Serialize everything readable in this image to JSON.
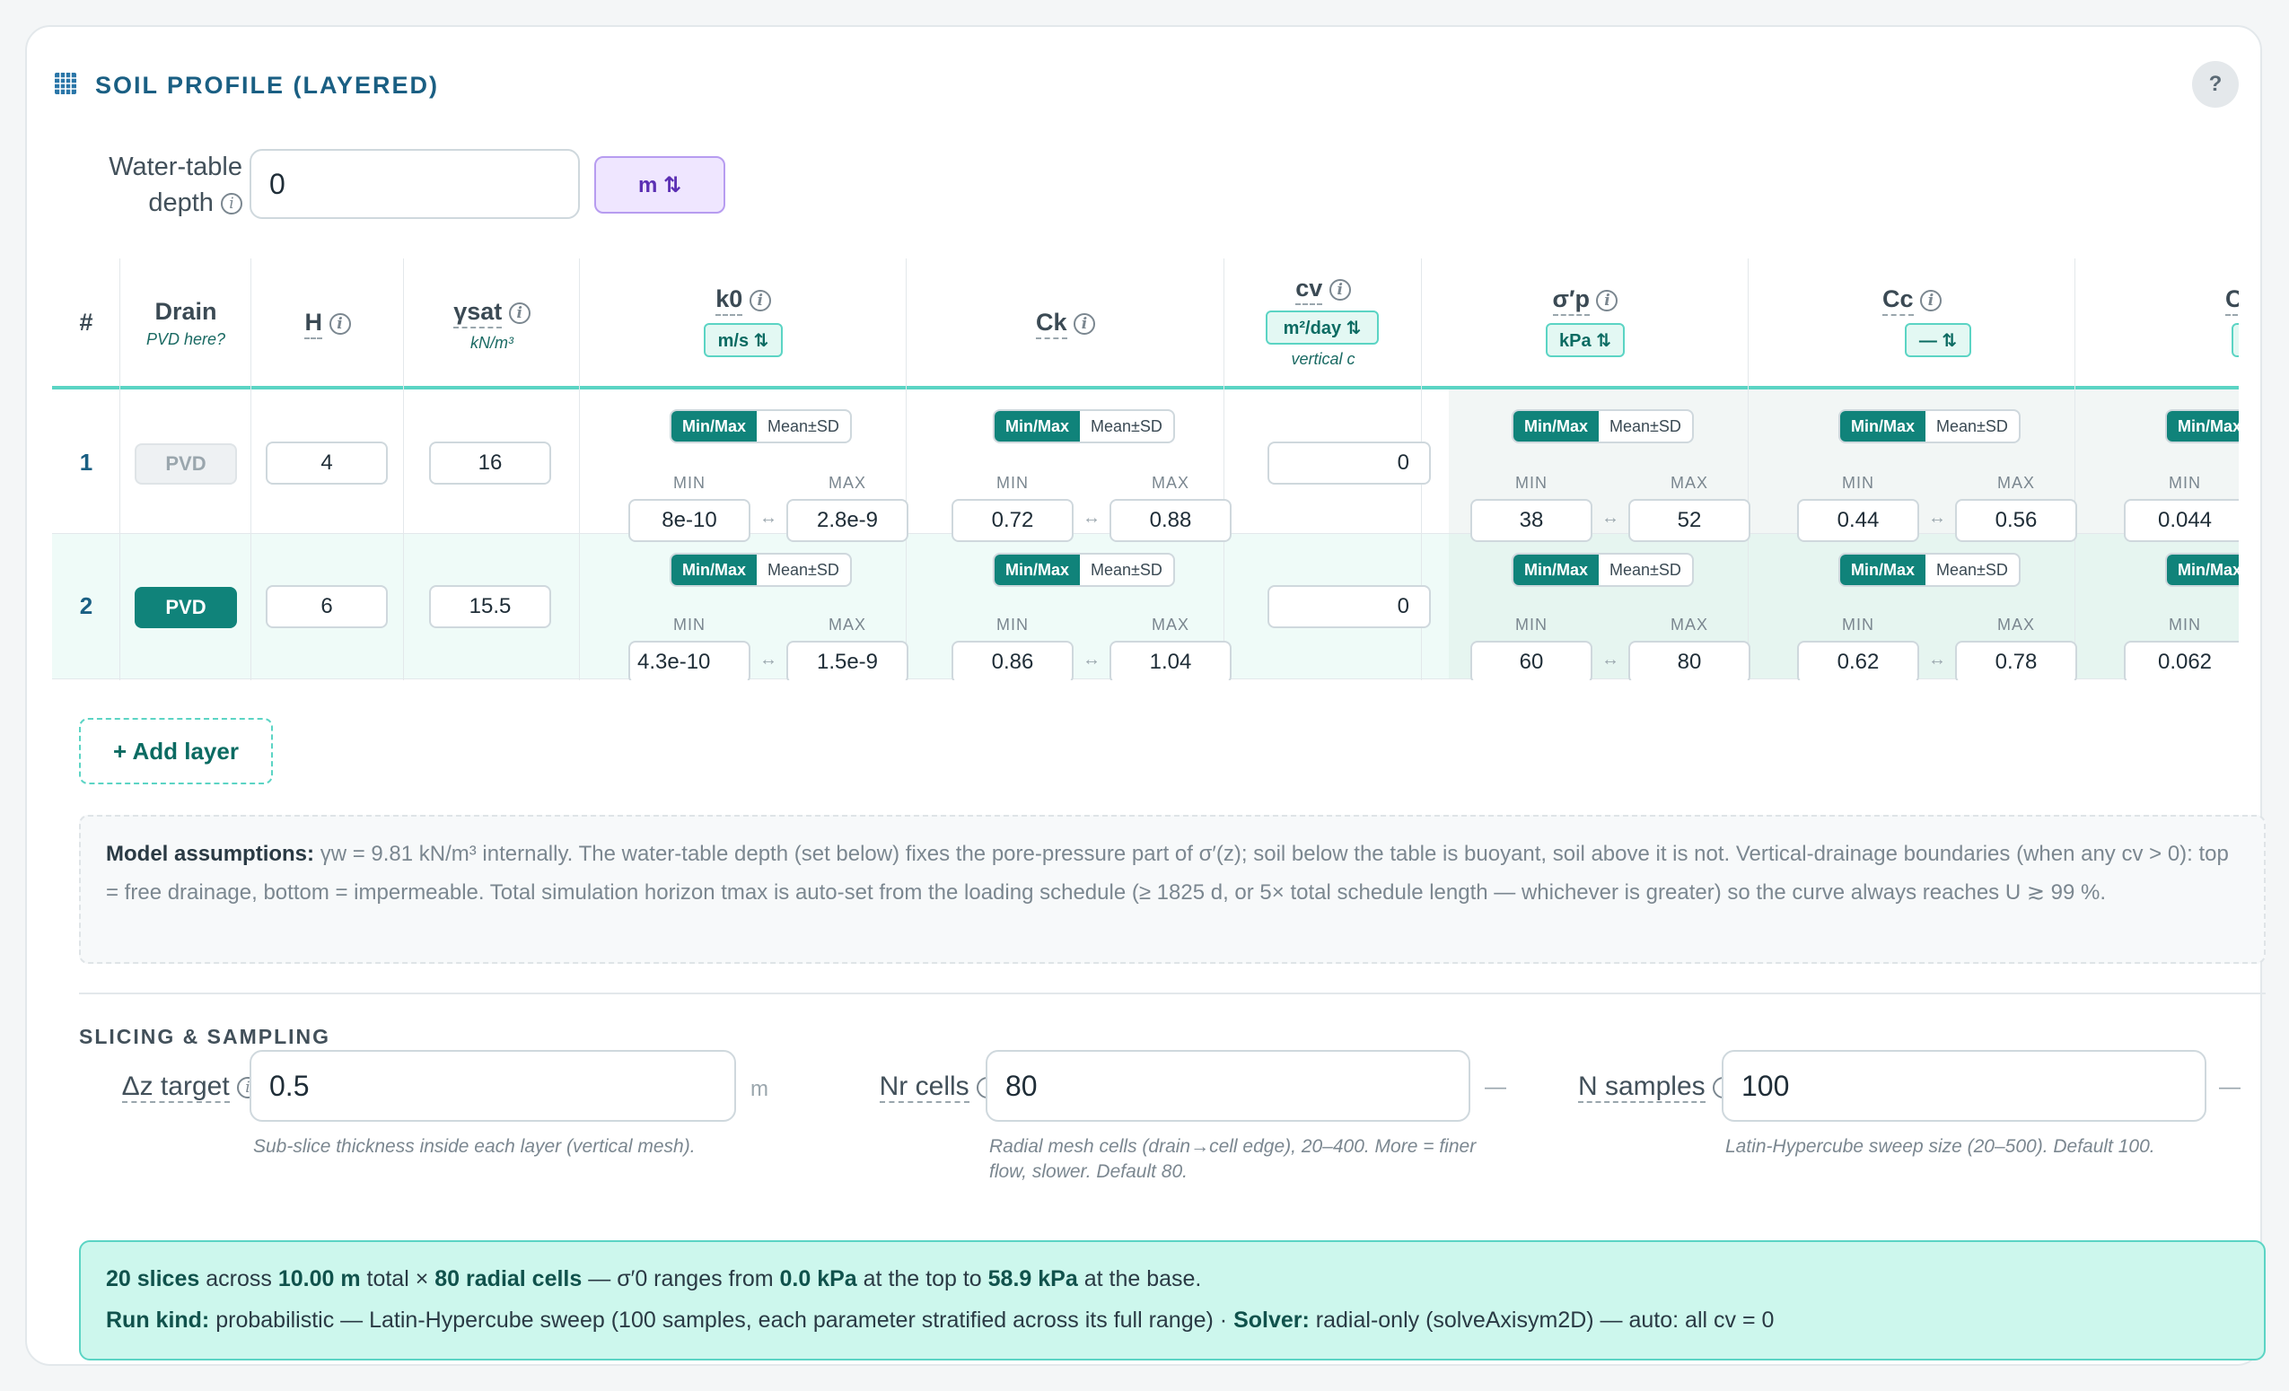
{
  "header": {
    "title": "SOIL PROFILE (LAYERED)",
    "help": "?"
  },
  "water_table": {
    "label_line1": "Water-table",
    "label_line2": "depth",
    "value": "0",
    "unit": "m ⇅"
  },
  "columns": {
    "num": "#",
    "drain": "Drain",
    "drain_sub": "PVD here?",
    "h": "H",
    "gamma": "γsat",
    "gamma_sub": "kN/m³",
    "k0": "k0",
    "k0_unit": "m/s ⇅",
    "ck": "Ck",
    "cv": "cv",
    "cv_unit": "m²/day ⇅",
    "cv_sub": "vertical c",
    "sigp": "σ′p",
    "sigp_unit": "kPa ⇅",
    "cc": "Cc",
    "cc_unit": "— ⇅",
    "cr": "Cr",
    "cr_unit": "—"
  },
  "mode": {
    "minmax": "Min/Max",
    "meansd": "Mean±SD",
    "min": "MIN",
    "max": "MAX"
  },
  "rows": [
    {
      "num": "1",
      "pvd": "PVD",
      "pvd_on": false,
      "h": "4",
      "gamma": "16",
      "k0_min": "8e-10",
      "k0_max": "2.8e-9",
      "ck_min": "0.72",
      "ck_max": "0.88",
      "cv": "0",
      "sigp_min": "38",
      "sigp_max": "52",
      "cc_min": "0.44",
      "cc_max": "0.56",
      "cr_min": "0.044"
    },
    {
      "num": "2",
      "pvd": "PVD",
      "pvd_on": true,
      "h": "6",
      "gamma": "15.5",
      "k0_min": "4.3e-10",
      "k0_max": "1.5e-9",
      "ck_min": "0.86",
      "ck_max": "1.04",
      "cv": "0",
      "sigp_min": "60",
      "sigp_max": "80",
      "cc_min": "0.62",
      "cc_max": "0.78",
      "cr_min": "0.062"
    }
  ],
  "add_layer": "+ Add layer",
  "assumptions": {
    "heading": "Model assumptions:",
    "text": "γw = 9.81 kN/m³ internally. The water-table depth (set below) fixes the pore-pressure part of σ′(z); soil below the table is buoyant, soil above it is not. Vertical-drainage boundaries (when any cv > 0): top = free drainage, bottom = impermeable. Total simulation horizon tmax is auto-set from the loading schedule (≥ 1825 d, or 5× total schedule length — whichever is greater) so the curve always reaches U ≳ 99 %."
  },
  "slicing": {
    "title": "SLICING & SAMPLING",
    "dz": {
      "label": "Δz target",
      "value": "0.5",
      "unit": "m",
      "help": "Sub-slice thickness inside each layer (vertical mesh)."
    },
    "nr": {
      "label": "Nr cells",
      "value": "80",
      "unit": "—",
      "help": "Radial mesh cells (drain→cell edge), 20–400. More = finer flow, slower. Default 80."
    },
    "ns": {
      "label": "N samples",
      "value": "100",
      "unit": "—",
      "help": "Latin-Hypercube sweep size (20–500). Default 100."
    }
  },
  "summary": {
    "slices": "20 slices",
    "across": "across",
    "total": "10.00 m",
    "total_word": "total ×",
    "cells": "80 radial cells",
    "ranges": "— σ′0 ranges from",
    "top_val": "0.0 kPa",
    "at_top": "at the top to",
    "base_val": "58.9 kPa",
    "at_base": "at the base.",
    "run_kind_label": "Run kind:",
    "run_kind": "probabilistic — Latin-Hypercube sweep (100 samples, each parameter stratified across its full range) ·",
    "solver_label": "Solver:",
    "solver": "radial-only (solveAxisym2D) — auto: all cv = 0"
  },
  "colors": {
    "accent": "#10837a",
    "title": "#1a5f83",
    "unit_purple": "#efe6ff",
    "summary_bg": "#cdf7ed"
  }
}
